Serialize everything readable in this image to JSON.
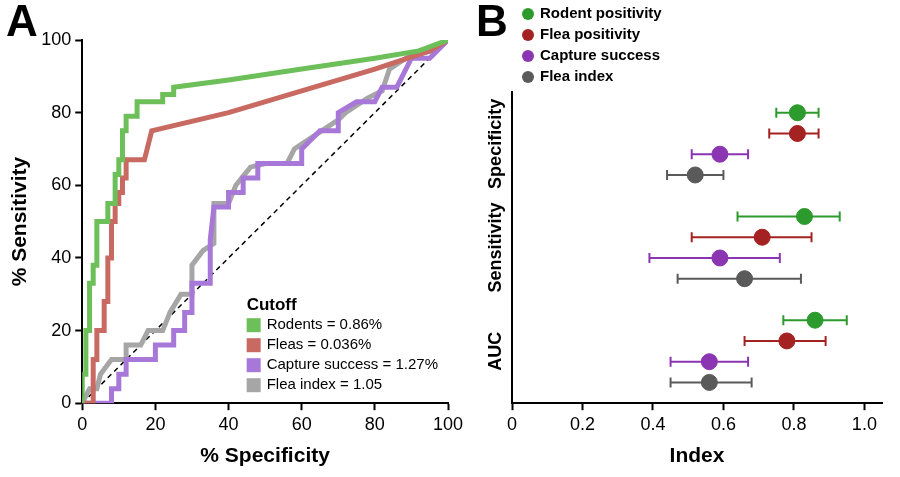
{
  "chart_data": [
    {
      "type": "line",
      "title": "A",
      "x_label": "% Specificity",
      "y_label": "% Sensitivity",
      "xlim": [
        0,
        100
      ],
      "ylim": [
        0,
        100
      ],
      "xticks": [
        0,
        20,
        40,
        60,
        80,
        100
      ],
      "yticks": [
        0,
        20,
        40,
        60,
        80,
        100
      ],
      "grid": false,
      "legend": "lower right",
      "legend_title": "Cutoff",
      "series": [
        {
          "color": "#000000",
          "line_style": "dashed",
          "x": [
            0,
            100
          ],
          "values": [
            0,
            100
          ]
        },
        {
          "name": "Rodents = 0.86%",
          "color": "#6dbf5a",
          "x": [
            0,
            0,
            1,
            1,
            2,
            2,
            3,
            3,
            4,
            4,
            7,
            7,
            9,
            9,
            10,
            10,
            11,
            11,
            12,
            12,
            15,
            15,
            22,
            22,
            25,
            25,
            40,
            60,
            80,
            92,
            100
          ],
          "values": [
            0,
            8,
            8,
            20,
            20,
            33,
            33,
            38,
            38,
            50,
            50,
            55,
            55,
            63,
            63,
            67,
            67,
            75,
            75,
            79,
            79,
            83,
            83,
            85,
            85,
            87,
            89,
            92,
            95,
            97,
            100
          ]
        },
        {
          "name": "Fleas = 0.036%",
          "color": "#c96a62",
          "x": [
            0,
            3,
            3,
            4,
            4,
            6,
            6,
            7,
            7,
            8,
            8,
            9,
            9,
            10,
            10,
            11,
            11,
            12,
            12,
            17,
            19,
            40,
            60,
            80,
            95,
            100
          ],
          "values": [
            0,
            0,
            12,
            12,
            20,
            20,
            28,
            28,
            40,
            40,
            50,
            50,
            55,
            55,
            58,
            58,
            62,
            62,
            67,
            67,
            75,
            80,
            86,
            92,
            97,
            100
          ]
        },
        {
          "name": "Capture success = 1.27%",
          "color": "#a878d8",
          "x": [
            0,
            8,
            8,
            10,
            10,
            12,
            12,
            20,
            20,
            25,
            25,
            28,
            28,
            30,
            30,
            35,
            35,
            36,
            40,
            40,
            44,
            44,
            48,
            48,
            60,
            60,
            65,
            70,
            70,
            75,
            80,
            82,
            86,
            90,
            95,
            100
          ],
          "values": [
            0,
            0,
            4,
            4,
            8,
            8,
            12,
            12,
            16,
            16,
            20,
            20,
            25,
            25,
            33,
            33,
            45,
            54,
            54,
            58,
            58,
            62,
            62,
            66,
            66,
            70,
            75,
            75,
            80,
            83,
            83,
            87,
            87,
            95,
            95,
            100
          ]
        },
        {
          "name": "Flea index = 1.05",
          "color": "#a6a6a6",
          "x": [
            0,
            2,
            4,
            5,
            8,
            12,
            12,
            16,
            18,
            22,
            24,
            27,
            30,
            30,
            33,
            36,
            36,
            40,
            42,
            46,
            50,
            56,
            58,
            64,
            70,
            72,
            78,
            82,
            84,
            90,
            96,
            100
          ],
          "values": [
            0,
            4,
            4,
            8,
            12,
            12,
            16,
            16,
            20,
            20,
            25,
            30,
            30,
            38,
            42,
            44,
            55,
            55,
            60,
            65,
            66,
            66,
            70,
            74,
            78,
            80,
            84,
            86,
            92,
            96,
            97,
            100
          ]
        }
      ]
    },
    {
      "type": "dot",
      "title": "B",
      "orientation": "horizontal",
      "x_label": "Index",
      "categories": [
        "Specificity",
        "Sensitivity",
        "AUC"
      ],
      "xlim": [
        0,
        1.05
      ],
      "xticks": [
        0,
        0.2,
        0.4,
        0.6,
        0.8,
        {
          "value": 1,
          "label": "1.0"
        }
      ],
      "grid": false,
      "legend": "upper left",
      "series": [
        {
          "name": "Rodent positivity",
          "color": "#2c9a2c",
          "values": [
            0.81,
            0.83,
            0.86
          ],
          "lower": [
            0.75,
            0.64,
            0.77
          ],
          "upper": [
            0.87,
            0.93,
            0.95
          ]
        },
        {
          "name": "Flea positivity",
          "color": "#a52222",
          "values": [
            0.81,
            0.71,
            0.78
          ],
          "lower": [
            0.73,
            0.51,
            0.66
          ],
          "upper": [
            0.87,
            0.85,
            0.89
          ]
        },
        {
          "name": "Capture success",
          "color": "#8b35b3",
          "values": [
            0.59,
            0.59,
            0.56
          ],
          "lower": [
            0.51,
            0.39,
            0.45
          ],
          "upper": [
            0.67,
            0.76,
            0.67
          ]
        },
        {
          "name": "Flea index",
          "color": "#5a5a5a",
          "values": [
            0.52,
            0.66,
            0.56
          ],
          "lower": [
            0.44,
            0.47,
            0.45
          ],
          "upper": [
            0.6,
            0.82,
            0.68
          ]
        }
      ]
    }
  ]
}
